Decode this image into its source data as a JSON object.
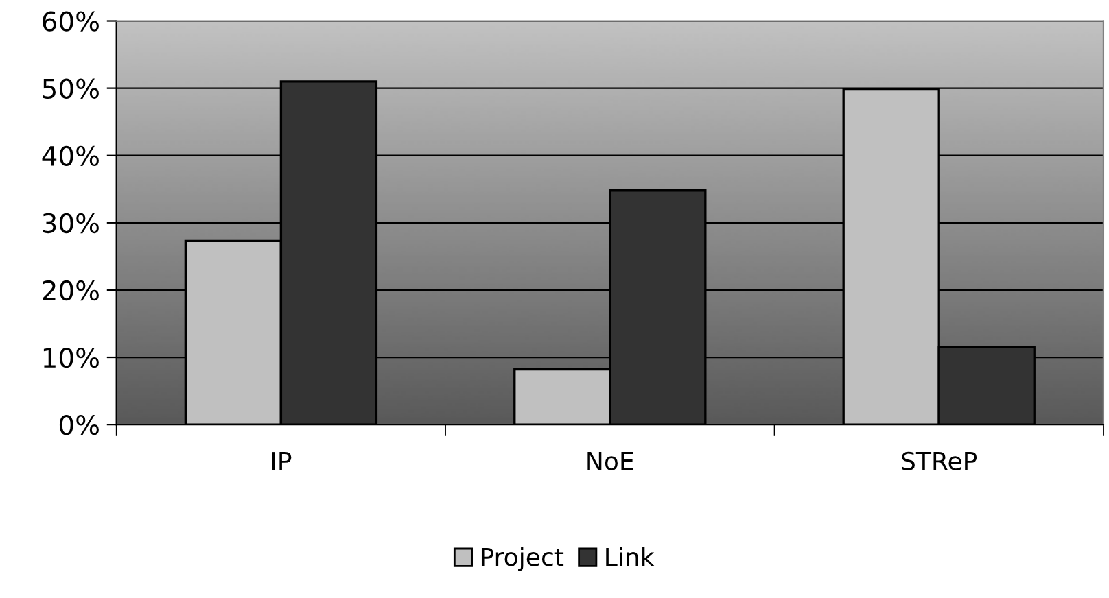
{
  "chart_data": {
    "type": "bar",
    "categories": [
      "IP",
      "NoE",
      "STReP"
    ],
    "series": [
      {
        "name": "Project",
        "color": "#c0c0c0",
        "values": [
          27.3,
          8.2,
          49.9
        ]
      },
      {
        "name": "Link",
        "color": "#333333",
        "values": [
          51.0,
          34.8,
          11.5
        ]
      }
    ],
    "ylim": [
      0,
      60
    ],
    "yticks": [
      {
        "value": 0,
        "label": "0%"
      },
      {
        "value": 10,
        "label": "10%"
      },
      {
        "value": 20,
        "label": "20%"
      },
      {
        "value": 30,
        "label": "30%"
      },
      {
        "value": 40,
        "label": "40%"
      },
      {
        "value": 50,
        "label": "50%"
      },
      {
        "value": 60,
        "label": "60%"
      }
    ],
    "grid": "y",
    "legend": "bottom"
  }
}
